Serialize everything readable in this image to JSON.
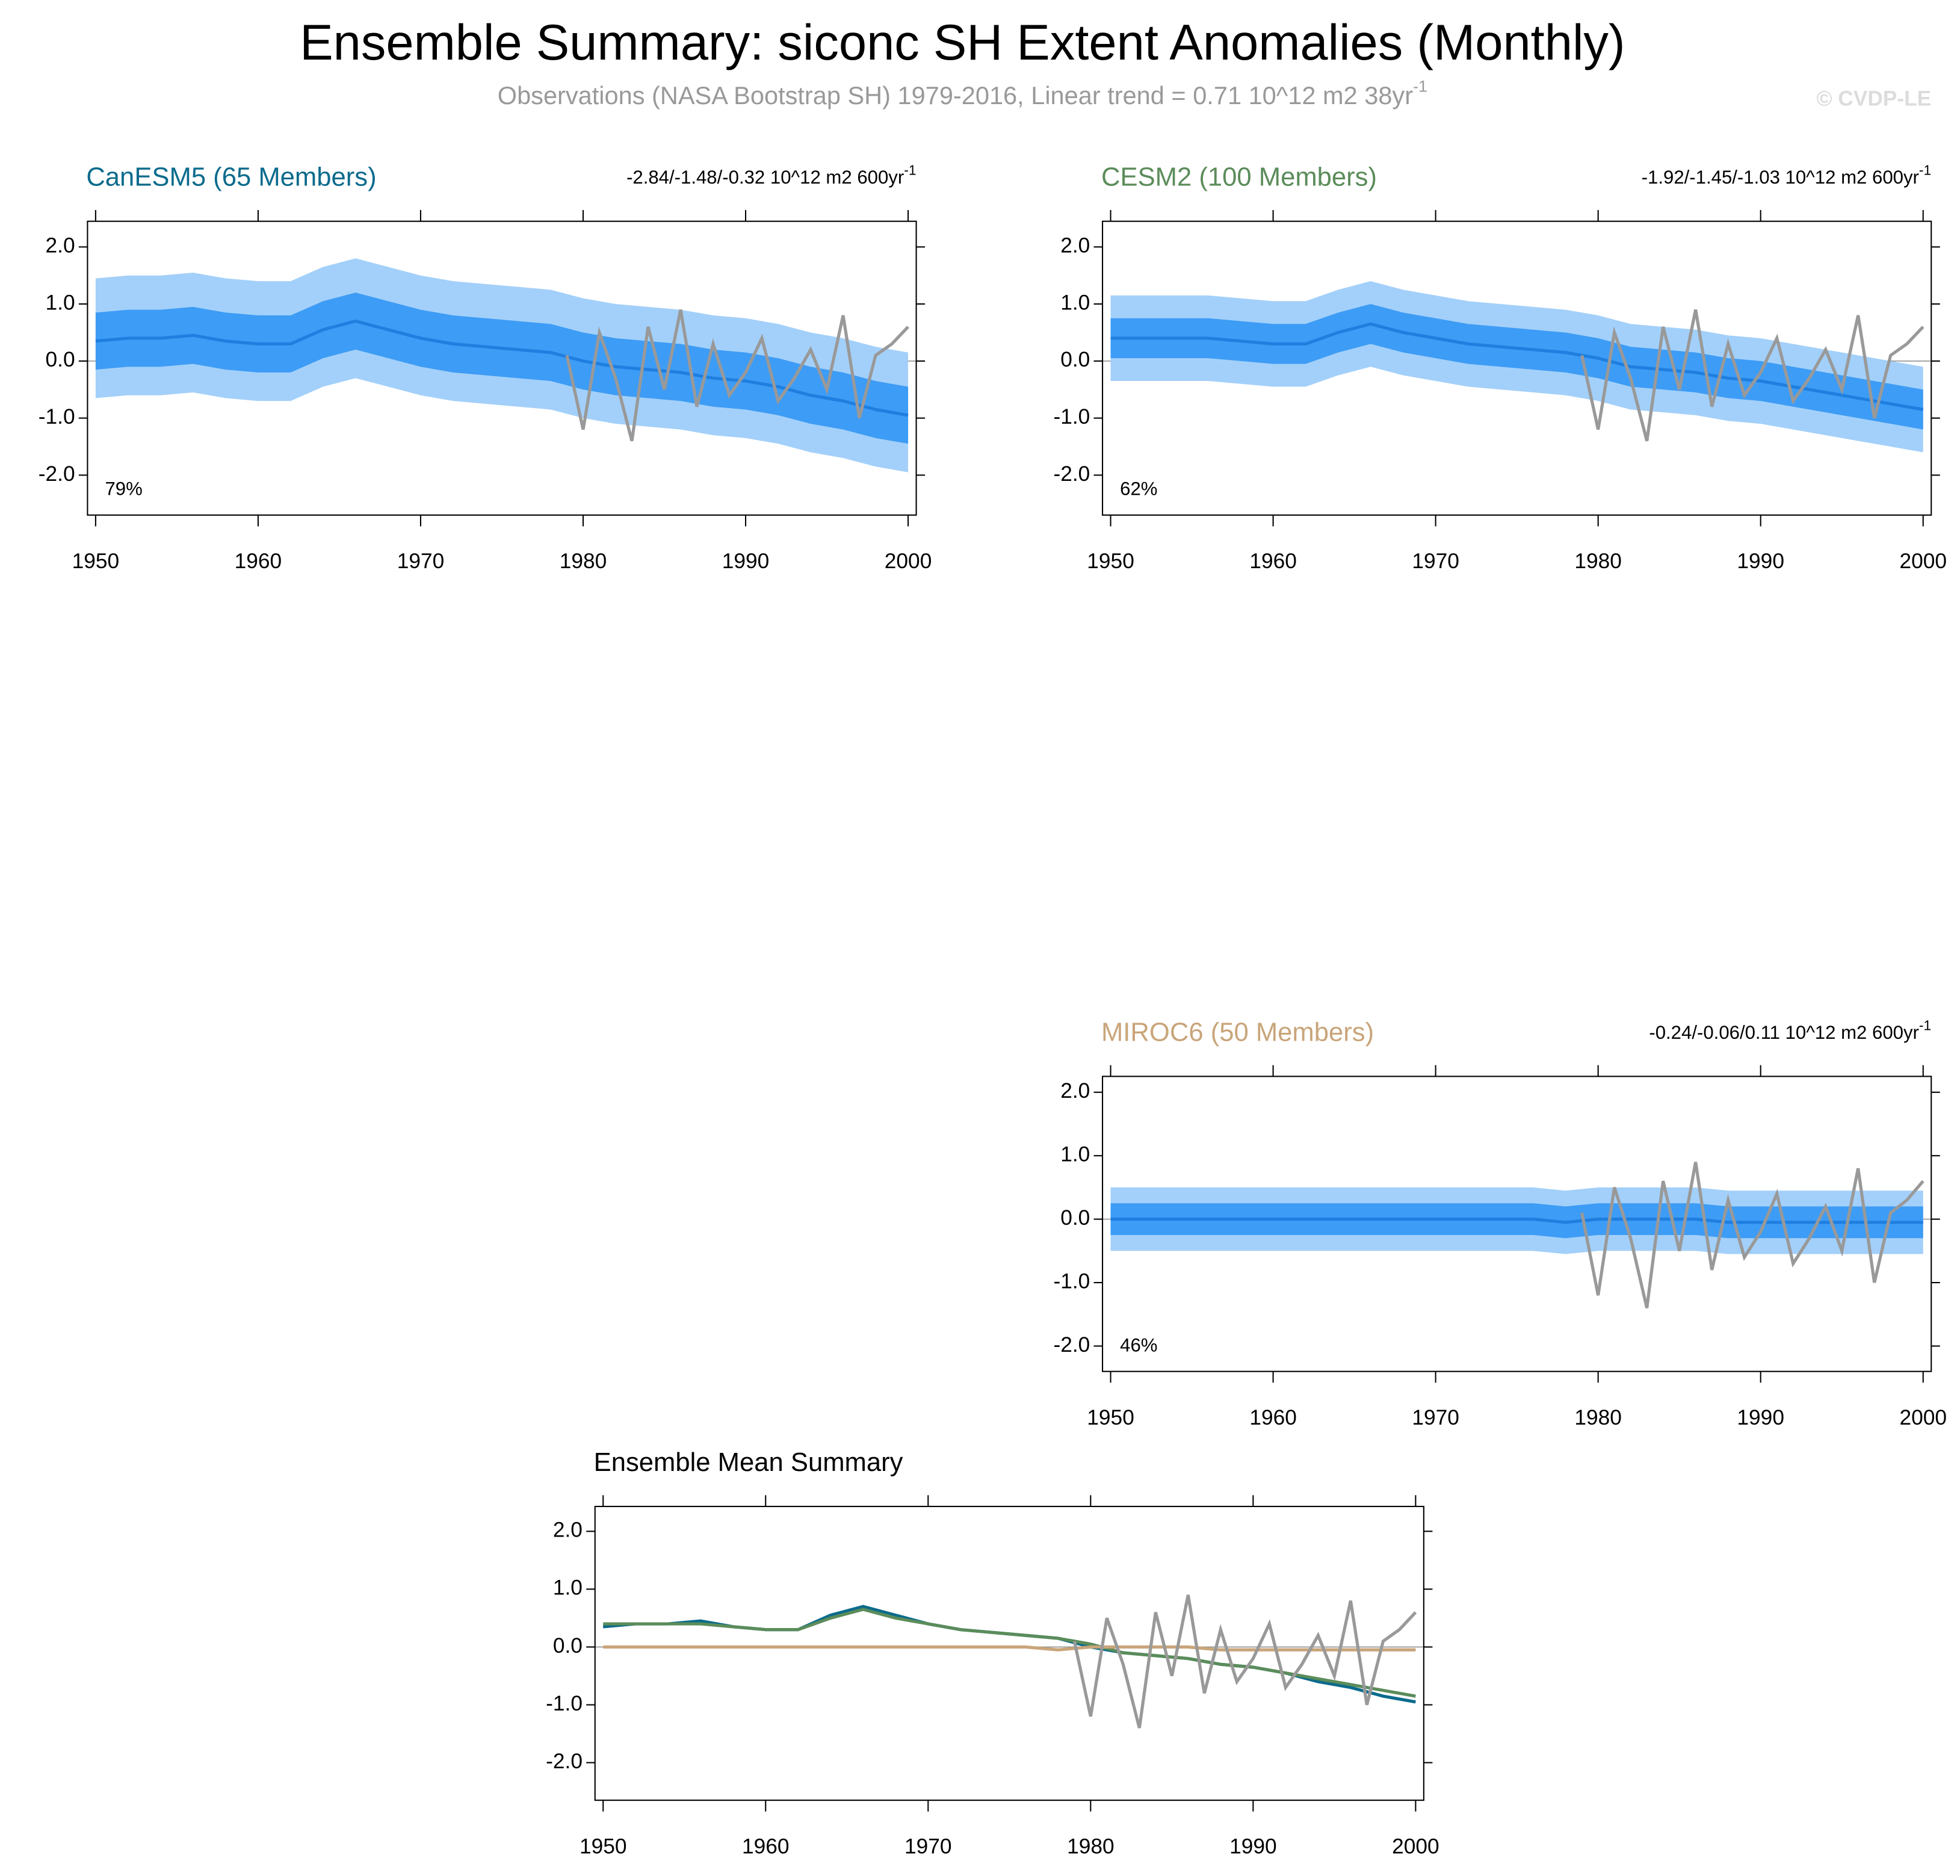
{
  "title": "Ensemble Summary: siconc SH Extent Anomalies (Monthly)",
  "subtitle": "Observations (NASA Bootstrap SH) 1979-2016, Linear trend = 0.71 10^12 m2 38yr",
  "subtitle_sup": "-1",
  "watermark": "© CVDP-LE",
  "observations": {
    "color": "#999999",
    "x": [
      1979,
      1980,
      1981,
      1982,
      1983,
      1984,
      1985,
      1986,
      1987,
      1988,
      1989,
      1990,
      1991,
      1992,
      1993,
      1994,
      1995,
      1996,
      1997,
      1998,
      1999,
      2000
    ],
    "values": [
      0.1,
      -1.2,
      0.5,
      -0.3,
      -1.4,
      0.6,
      -0.5,
      0.9,
      -0.8,
      0.3,
      -0.6,
      -0.2,
      0.4,
      -0.7,
      -0.3,
      0.2,
      -0.5,
      0.8,
      -1.0,
      0.1,
      0.3,
      0.6
    ]
  },
  "chart_data": [
    {
      "type": "band_line",
      "title": "CanESM5 (65 Members)",
      "title_color": "#0b6b8c",
      "trend_label": "-2.84/-1.48/-0.32 10^12 m2 600yr",
      "trend_sup": "-1",
      "annotation": "79%",
      "x": [
        1950,
        1952,
        1954,
        1956,
        1958,
        1960,
        1962,
        1964,
        1966,
        1968,
        1970,
        1972,
        1974,
        1976,
        1978,
        1980,
        1982,
        1984,
        1986,
        1988,
        1990,
        1992,
        1994,
        1996,
        1998,
        2000
      ],
      "bands": [
        {
          "color": "#a3d0fa",
          "low": [
            -0.65,
            -0.6,
            -0.6,
            -0.55,
            -0.65,
            -0.7,
            -0.7,
            -0.45,
            -0.3,
            -0.45,
            -0.6,
            -0.7,
            -0.75,
            -0.8,
            -0.85,
            -1.0,
            -1.1,
            -1.15,
            -1.2,
            -1.3,
            -1.35,
            -1.45,
            -1.6,
            -1.7,
            -1.85,
            -1.95
          ],
          "high": [
            1.45,
            1.5,
            1.5,
            1.55,
            1.45,
            1.4,
            1.4,
            1.65,
            1.8,
            1.65,
            1.5,
            1.4,
            1.35,
            1.3,
            1.25,
            1.1,
            1.0,
            0.95,
            0.9,
            0.8,
            0.75,
            0.65,
            0.5,
            0.4,
            0.25,
            0.15
          ]
        },
        {
          "color": "#3d9cf5",
          "low": [
            -0.15,
            -0.1,
            -0.1,
            -0.05,
            -0.15,
            -0.2,
            -0.2,
            0.05,
            0.2,
            0.05,
            -0.1,
            -0.2,
            -0.25,
            -0.3,
            -0.35,
            -0.5,
            -0.6,
            -0.65,
            -0.7,
            -0.8,
            -0.85,
            -0.95,
            -1.1,
            -1.2,
            -1.35,
            -1.45
          ],
          "high": [
            0.85,
            0.9,
            0.9,
            0.95,
            0.85,
            0.8,
            0.8,
            1.05,
            1.2,
            1.05,
            0.9,
            0.8,
            0.75,
            0.7,
            0.65,
            0.5,
            0.4,
            0.35,
            0.3,
            0.2,
            0.15,
            0.05,
            -0.1,
            -0.2,
            -0.35,
            -0.45
          ]
        }
      ],
      "mean": {
        "color": "#1f7fe0",
        "values": [
          0.35,
          0.4,
          0.4,
          0.45,
          0.35,
          0.3,
          0.3,
          0.55,
          0.7,
          0.55,
          0.4,
          0.3,
          0.25,
          0.2,
          0.15,
          0.0,
          -0.1,
          -0.15,
          -0.2,
          -0.3,
          -0.35,
          -0.45,
          -0.6,
          -0.7,
          -0.85,
          -0.95
        ]
      },
      "hline": 0,
      "xlim": [
        1949.5,
        2000.5
      ],
      "xticks": [
        1950,
        1960,
        1970,
        1980,
        1990,
        2000
      ],
      "ylim": [
        -2.7,
        2.45
      ],
      "yticks": [
        {
          "value": 2,
          "label": "2.0"
        },
        {
          "value": 1,
          "label": "1.0"
        },
        {
          "value": 0,
          "label": "0.0"
        },
        {
          "value": -1,
          "label": "-1.0"
        },
        {
          "value": -2,
          "label": "-2.0"
        }
      ]
    },
    {
      "type": "band_line",
      "title": "CESM2 (100 Members)",
      "title_color": "#5b8c5a",
      "trend_label": "-1.92/-1.45/-1.03 10^12 m2 600yr",
      "trend_sup": "-1",
      "annotation": "62%",
      "x": [
        1950,
        1952,
        1954,
        1956,
        1958,
        1960,
        1962,
        1964,
        1966,
        1968,
        1970,
        1972,
        1974,
        1976,
        1978,
        1980,
        1982,
        1984,
        1986,
        1988,
        1990,
        1992,
        1994,
        1996,
        1998,
        2000
      ],
      "bands": [
        {
          "color": "#a3d0fa",
          "low": [
            -0.35,
            -0.35,
            -0.35,
            -0.35,
            -0.4,
            -0.45,
            -0.45,
            -0.25,
            -0.1,
            -0.25,
            -0.35,
            -0.45,
            -0.5,
            -0.55,
            -0.6,
            -0.7,
            -0.85,
            -0.9,
            -0.95,
            -1.05,
            -1.1,
            -1.2,
            -1.3,
            -1.4,
            -1.5,
            -1.6
          ],
          "high": [
            1.15,
            1.15,
            1.15,
            1.15,
            1.1,
            1.05,
            1.05,
            1.25,
            1.4,
            1.25,
            1.15,
            1.05,
            1.0,
            0.95,
            0.9,
            0.8,
            0.65,
            0.6,
            0.55,
            0.45,
            0.4,
            0.3,
            0.2,
            0.1,
            0.0,
            -0.1
          ]
        },
        {
          "color": "#3d9cf5",
          "low": [
            0.05,
            0.05,
            0.05,
            0.05,
            0.0,
            -0.05,
            -0.05,
            0.15,
            0.3,
            0.15,
            0.05,
            -0.05,
            -0.1,
            -0.15,
            -0.2,
            -0.3,
            -0.45,
            -0.5,
            -0.55,
            -0.65,
            -0.7,
            -0.8,
            -0.9,
            -1.0,
            -1.1,
            -1.2
          ],
          "high": [
            0.75,
            0.75,
            0.75,
            0.75,
            0.7,
            0.65,
            0.65,
            0.85,
            1.0,
            0.85,
            0.75,
            0.65,
            0.6,
            0.55,
            0.5,
            0.4,
            0.25,
            0.2,
            0.15,
            0.05,
            0.0,
            -0.1,
            -0.2,
            -0.3,
            -0.4,
            -0.5
          ]
        }
      ],
      "mean": {
        "color": "#1f7fe0",
        "values": [
          0.4,
          0.4,
          0.4,
          0.4,
          0.35,
          0.3,
          0.3,
          0.5,
          0.65,
          0.5,
          0.4,
          0.3,
          0.25,
          0.2,
          0.15,
          0.05,
          -0.1,
          -0.15,
          -0.2,
          -0.3,
          -0.35,
          -0.45,
          -0.55,
          -0.65,
          -0.75,
          -0.85
        ]
      },
      "hline": 0,
      "xlim": [
        1949.5,
        2000.5
      ],
      "xticks": [
        1950,
        1960,
        1970,
        1980,
        1990,
        2000
      ],
      "ylim": [
        -2.7,
        2.45
      ],
      "yticks": [
        {
          "value": 2,
          "label": "2.0"
        },
        {
          "value": 1,
          "label": "1.0"
        },
        {
          "value": 0,
          "label": "0.0"
        },
        {
          "value": -1,
          "label": "-1.0"
        },
        {
          "value": -2,
          "label": "-2.0"
        }
      ]
    },
    {
      "type": "band_line",
      "title": "MIROC6 (50 Members)",
      "title_color": "#c9a57a",
      "trend_label": "-0.24/-0.06/0.11 10^12 m2 600yr",
      "trend_sup": "-1",
      "annotation": "46%",
      "x": [
        1950,
        1952,
        1954,
        1956,
        1958,
        1960,
        1962,
        1964,
        1966,
        1968,
        1970,
        1972,
        1974,
        1976,
        1978,
        1980,
        1982,
        1984,
        1986,
        1988,
        1990,
        1992,
        1994,
        1996,
        1998,
        2000
      ],
      "bands": [
        {
          "color": "#a3d0fa",
          "low": [
            -0.5,
            -0.5,
            -0.5,
            -0.5,
            -0.5,
            -0.5,
            -0.5,
            -0.5,
            -0.5,
            -0.5,
            -0.5,
            -0.5,
            -0.5,
            -0.5,
            -0.55,
            -0.5,
            -0.5,
            -0.5,
            -0.5,
            -0.55,
            -0.55,
            -0.55,
            -0.55,
            -0.55,
            -0.55,
            -0.55
          ],
          "high": [
            0.5,
            0.5,
            0.5,
            0.5,
            0.5,
            0.5,
            0.5,
            0.5,
            0.5,
            0.5,
            0.5,
            0.5,
            0.5,
            0.5,
            0.45,
            0.5,
            0.5,
            0.5,
            0.5,
            0.45,
            0.45,
            0.45,
            0.45,
            0.45,
            0.45,
            0.45
          ]
        },
        {
          "color": "#3d9cf5",
          "low": [
            -0.25,
            -0.25,
            -0.25,
            -0.25,
            -0.25,
            -0.25,
            -0.25,
            -0.25,
            -0.25,
            -0.25,
            -0.25,
            -0.25,
            -0.25,
            -0.25,
            -0.3,
            -0.25,
            -0.25,
            -0.25,
            -0.25,
            -0.3,
            -0.3,
            -0.3,
            -0.3,
            -0.3,
            -0.3,
            -0.3
          ],
          "high": [
            0.25,
            0.25,
            0.25,
            0.25,
            0.25,
            0.25,
            0.25,
            0.25,
            0.25,
            0.25,
            0.25,
            0.25,
            0.25,
            0.25,
            0.2,
            0.25,
            0.25,
            0.25,
            0.25,
            0.2,
            0.2,
            0.2,
            0.2,
            0.2,
            0.2,
            0.2
          ]
        }
      ],
      "mean": {
        "color": "#1f7fe0",
        "values": [
          0,
          0,
          0,
          0,
          0,
          0,
          0,
          0,
          0,
          0,
          0,
          0,
          0,
          0,
          -0.05,
          0,
          0,
          0,
          0,
          -0.05,
          -0.05,
          -0.05,
          -0.05,
          -0.05,
          -0.05,
          -0.05
        ]
      },
      "hline": 0,
      "xlim": [
        1949.5,
        2000.5
      ],
      "xticks": [
        1950,
        1960,
        1970,
        1980,
        1990,
        2000
      ],
      "ylim": [
        -2.4,
        2.25
      ],
      "yticks": [
        {
          "value": 2,
          "label": "2.0"
        },
        {
          "value": 1,
          "label": "1.0"
        },
        {
          "value": 0,
          "label": "0.0"
        },
        {
          "value": -1,
          "label": "-1.0"
        },
        {
          "value": -2,
          "label": "-2.0"
        }
      ]
    },
    {
      "type": "line",
      "title": "Ensemble Mean Summary",
      "title_color": "#000000",
      "x": [
        1950,
        1952,
        1954,
        1956,
        1958,
        1960,
        1962,
        1964,
        1966,
        1968,
        1970,
        1972,
        1974,
        1976,
        1978,
        1980,
        1982,
        1984,
        1986,
        1988,
        1990,
        1992,
        1994,
        1996,
        1998,
        2000
      ],
      "series": [
        {
          "color": "#0b6b8c",
          "values": [
            0.35,
            0.4,
            0.4,
            0.45,
            0.35,
            0.3,
            0.3,
            0.55,
            0.7,
            0.55,
            0.4,
            0.3,
            0.25,
            0.2,
            0.15,
            0.0,
            -0.1,
            -0.15,
            -0.2,
            -0.3,
            -0.35,
            -0.45,
            -0.6,
            -0.7,
            -0.85,
            -0.95
          ]
        },
        {
          "color": "#5b8c5a",
          "values": [
            0.4,
            0.4,
            0.4,
            0.4,
            0.35,
            0.3,
            0.3,
            0.5,
            0.65,
            0.5,
            0.4,
            0.3,
            0.25,
            0.2,
            0.15,
            0.05,
            -0.1,
            -0.15,
            -0.2,
            -0.3,
            -0.35,
            -0.45,
            -0.55,
            -0.65,
            -0.75,
            -0.85
          ]
        },
        {
          "color": "#c9a57a",
          "values": [
            0,
            0,
            0,
            0,
            0,
            0,
            0,
            0,
            0,
            0,
            0,
            0,
            0,
            0,
            -0.05,
            0,
            0,
            0,
            0,
            -0.05,
            -0.05,
            -0.05,
            -0.05,
            -0.05,
            -0.05,
            -0.05
          ]
        }
      ],
      "hline": 0,
      "xlim": [
        1949.5,
        2000.5
      ],
      "xticks": [
        1950,
        1960,
        1970,
        1980,
        1990,
        2000
      ],
      "ylim": [
        -2.65,
        2.43
      ],
      "yticks": [
        {
          "value": 2,
          "label": "2.0"
        },
        {
          "value": 1,
          "label": "1.0"
        },
        {
          "value": 0,
          "label": "0.0"
        },
        {
          "value": -1,
          "label": "-1.0"
        },
        {
          "value": -2,
          "label": "-2.0"
        }
      ]
    }
  ]
}
